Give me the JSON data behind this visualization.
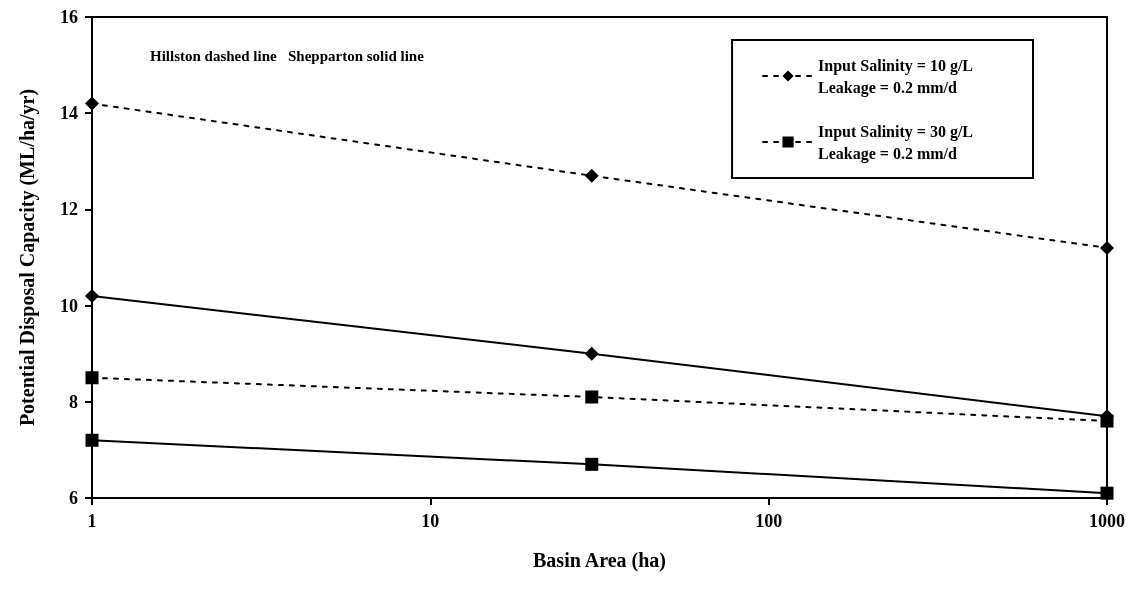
{
  "chart_data": {
    "type": "line",
    "xlabel": "Basin Area (ha)",
    "ylabel": "Potential Disposal Capacity (ML/ha/yr)",
    "annotations": [
      "Hillston dashed line   Shepparton solid line"
    ],
    "x": [
      1,
      30,
      1000
    ],
    "series": [
      {
        "name": "Input Salinity = 10 g/L\nLeakage = 0.2 mm/d",
        "color": "#000000",
        "values": [
          14.2,
          12.7,
          11.2
        ],
        "marker": "diamond",
        "line_style": "dotted"
      },
      {
        "name": "Input Salinity = 30 g/L\nLeakage = 0.2 mm/d",
        "color": "#000000",
        "values": [
          8.5,
          8.1,
          7.6
        ],
        "marker": "square",
        "line_style": "dotted"
      },
      {
        "color": "#000000",
        "values": [
          10.2,
          9.0,
          7.7
        ],
        "marker": "diamond",
        "line_style": "solid"
      },
      {
        "color": "#000000",
        "values": [
          7.2,
          6.7,
          6.1
        ],
        "marker": "square",
        "line_style": "solid"
      }
    ],
    "log": "x",
    "xlim": [
      1,
      1000
    ],
    "xticks": [
      1,
      10,
      100,
      1000
    ],
    "ylim": [
      6,
      16
    ],
    "yticks": [
      6,
      8,
      10,
      12,
      14,
      16
    ],
    "grid": false,
    "legend": "top right"
  }
}
